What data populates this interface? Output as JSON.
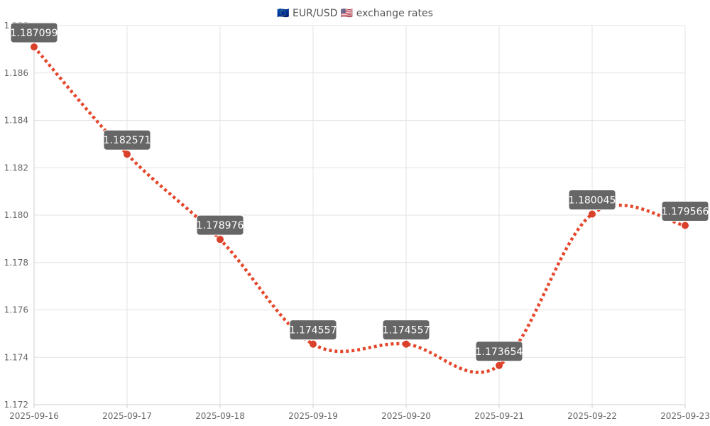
{
  "chart_data": {
    "type": "line",
    "title": "🇪🇺 EUR/USD 🇺🇸 exchange rates",
    "categories": [
      "2025-09-16",
      "2025-09-17",
      "2025-09-18",
      "2025-09-19",
      "2025-09-20",
      "2025-09-21",
      "2025-09-22",
      "2025-09-23"
    ],
    "series": [
      {
        "values": [
          1.187099,
          1.182571,
          1.178976,
          1.174557,
          1.174557,
          1.173654,
          1.180045,
          1.179566
        ],
        "labels": [
          "1.187099",
          "1.182571",
          "1.178976",
          "1.174557",
          "1.174557",
          "1.173654",
          "1.180045",
          "1.179566"
        ]
      }
    ],
    "y_ticks": [
      "1.172",
      "1.174",
      "1.176",
      "1.178",
      "1.180",
      "1.182",
      "1.184",
      "1.186",
      "1.188"
    ],
    "ylim": [
      1.172,
      1.188
    ],
    "xlabel": "",
    "ylabel": "",
    "grid": true,
    "legend": "none",
    "colors": {
      "line": "#e4472b",
      "point": "#d9412a",
      "label_background": "#666666",
      "label_text": "#ffffff",
      "grid": "#e3e3e3"
    }
  }
}
